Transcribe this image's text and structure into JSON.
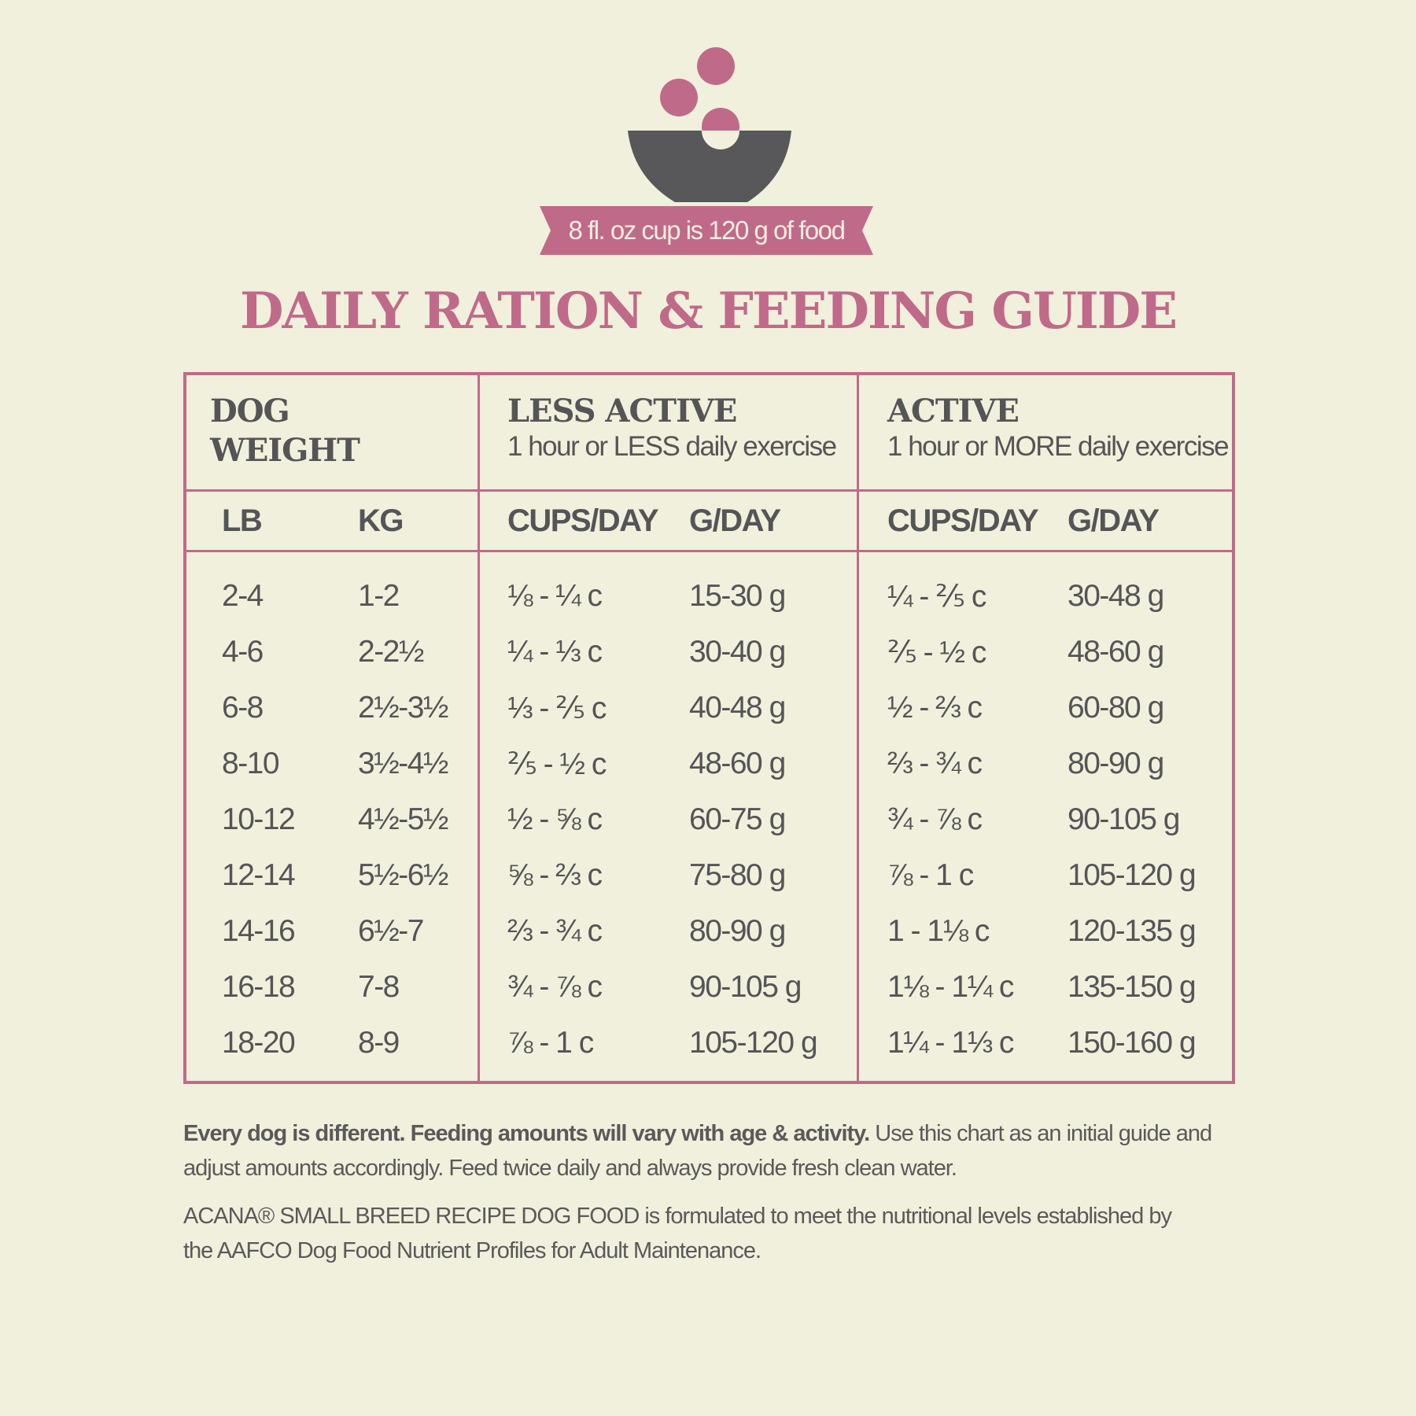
{
  "banner": {
    "text": "8 fl. oz cup is 120 g of food"
  },
  "title": "DAILY RATION & FEEDING GUIDE",
  "colors": {
    "accent": "#c06a8a",
    "text": "#555457",
    "background": "#f1f0dc"
  },
  "table": {
    "groups": [
      {
        "title": "DOG WEIGHT",
        "title_line1": "DOG",
        "title_line2": "WEIGHT",
        "subtitle": ""
      },
      {
        "title": "LESS ACTIVE",
        "subtitle": "1 hour or LESS daily exercise"
      },
      {
        "title": "ACTIVE",
        "subtitle": "1 hour or MORE daily exercise"
      }
    ],
    "columns": [
      "LB",
      "KG",
      "CUPS/DAY",
      "G/DAY",
      "CUPS/DAY",
      "G/DAY"
    ],
    "rows": [
      [
        "2-4",
        "1-2",
        "⅛ - ¼ c",
        "15-30 g",
        "¼ - ⅖ c",
        "30-48 g"
      ],
      [
        "4-6",
        "2-2½",
        "¼ - ⅓ c",
        "30-40 g",
        "⅖ - ½ c",
        "48-60 g"
      ],
      [
        "6-8",
        "2½-3½",
        "⅓ - ⅖ c",
        "40-48 g",
        "½ - ⅔ c",
        "60-80 g"
      ],
      [
        "8-10",
        "3½-4½",
        "⅖ - ½ c",
        "48-60 g",
        "⅔ - ¾ c",
        "80-90 g"
      ],
      [
        "10-12",
        "4½-5½",
        "½ - ⅝ c",
        "60-75 g",
        "¾ - ⅞ c",
        "90-105 g"
      ],
      [
        "12-14",
        "5½-6½",
        "⅝ - ⅔ c",
        "75-80 g",
        "⅞ - 1 c",
        "105-120 g"
      ],
      [
        "14-16",
        "6½-7",
        "⅔ - ¾ c",
        "80-90 g",
        "1 - 1⅛ c",
        "120-135 g"
      ],
      [
        "16-18",
        "7-8",
        "¾ - ⅞ c",
        "90-105 g",
        "1⅛ - 1¼ c",
        "135-150 g"
      ],
      [
        "18-20",
        "8-9",
        "⅞ - 1 c",
        "105-120 g",
        "1¼ - 1⅓ c",
        "150-160 g"
      ]
    ]
  },
  "footer": {
    "p1_bold": "Every dog is different. Feeding amounts will vary with age & activity.",
    "p1_rest": " Use this chart as an initial guide and adjust amounts accordingly. Feed twice daily and always provide fresh clean water.",
    "p2": "ACANA® SMALL BREED RECIPE DOG FOOD is formulated to meet the nutritional levels established by the AAFCO Dog Food Nutrient Profiles for Adult Maintenance."
  }
}
